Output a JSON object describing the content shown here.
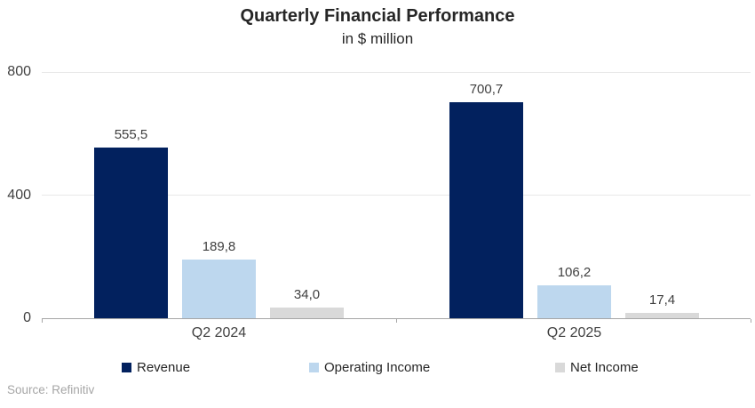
{
  "chart_data": {
    "type": "bar",
    "title": "Quarterly Financial Performance",
    "subtitle": "in $ million",
    "categories": [
      "Q2 2024",
      "Q2 2025"
    ],
    "series": [
      {
        "name": "Revenue",
        "color": "#02215e",
        "values": [
          555.5,
          700.7
        ],
        "display": [
          "555,5",
          "700,7"
        ]
      },
      {
        "name": "Operating Income",
        "color": "#bdd7ee",
        "values": [
          189.8,
          106.2
        ],
        "display": [
          "189,8",
          "106,2"
        ]
      },
      {
        "name": "Net Income",
        "color": "#d9d9d9",
        "values": [
          34.0,
          17.4
        ],
        "display": [
          "34,0",
          "17,4"
        ]
      }
    ],
    "ylim": [
      0,
      800
    ],
    "yticks": [
      0,
      400,
      800
    ],
    "ytick_labels": [
      "0",
      "400",
      "800"
    ],
    "grid": true,
    "legend_position": "bottom"
  },
  "footer": {
    "source": "Source: Refinitiv"
  },
  "colors": {
    "background": "#ffffff",
    "title_text": "#262626",
    "label_text": "#404040",
    "gridline": "#e8e8e8",
    "axis_line": "#a6a6a6",
    "source_text": "#a6a6a6"
  }
}
